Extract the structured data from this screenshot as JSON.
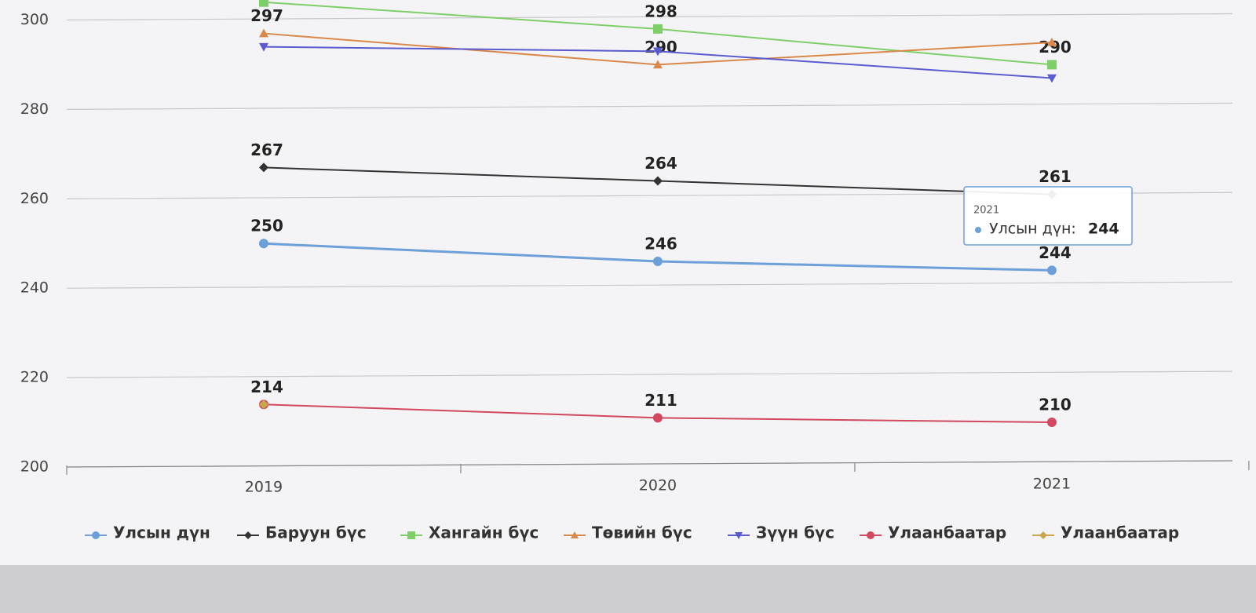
{
  "chart_data": {
    "type": "line",
    "categories": [
      "2019",
      "2020",
      "2021"
    ],
    "ylim": [
      200,
      305
    ],
    "yticks": [
      200,
      220,
      240,
      260,
      280,
      300
    ],
    "grid": true,
    "series": [
      {
        "name": "Улсын дүн",
        "color": "#6d9fd9",
        "marker": "circle",
        "values": [
          250,
          246,
          244
        ],
        "value_labels": [
          "250",
          "246",
          "244"
        ]
      },
      {
        "name": "Баруун бүс",
        "color": "#333333",
        "marker": "diamond",
        "values": [
          267,
          264,
          261
        ],
        "value_labels": [
          "267",
          "264",
          "261"
        ]
      },
      {
        "name": "Хангайн бүс",
        "color": "#7fcf68",
        "marker": "square",
        "values": [
          304,
          298,
          290
        ],
        "value_labels": [
          null,
          "298",
          "290"
        ]
      },
      {
        "name": "Төвийн бүс",
        "color": "#d9884a",
        "marker": "triangle",
        "values": [
          297,
          290,
          295
        ],
        "value_labels": [
          "297",
          "290",
          null
        ]
      },
      {
        "name": "Зүүн бүс",
        "color": "#5b5bd0",
        "marker": "triangle-down",
        "values": [
          294,
          293,
          287
        ],
        "value_labels": [
          null,
          null,
          null
        ]
      },
      {
        "name": "Улаанбаатар",
        "color": "#d1485f",
        "marker": "circle",
        "values": [
          214,
          211,
          210
        ],
        "value_labels": [
          "214",
          "211",
          "210"
        ]
      },
      {
        "name": "Улаанбаатар",
        "color": "#c9a74a",
        "marker": "diamond",
        "values": [
          214,
          null,
          null
        ],
        "value_labels": [
          null,
          null,
          null
        ]
      }
    ],
    "tooltip": {
      "title": "2021",
      "label": "Улсын дүн:",
      "value": 244
    }
  }
}
